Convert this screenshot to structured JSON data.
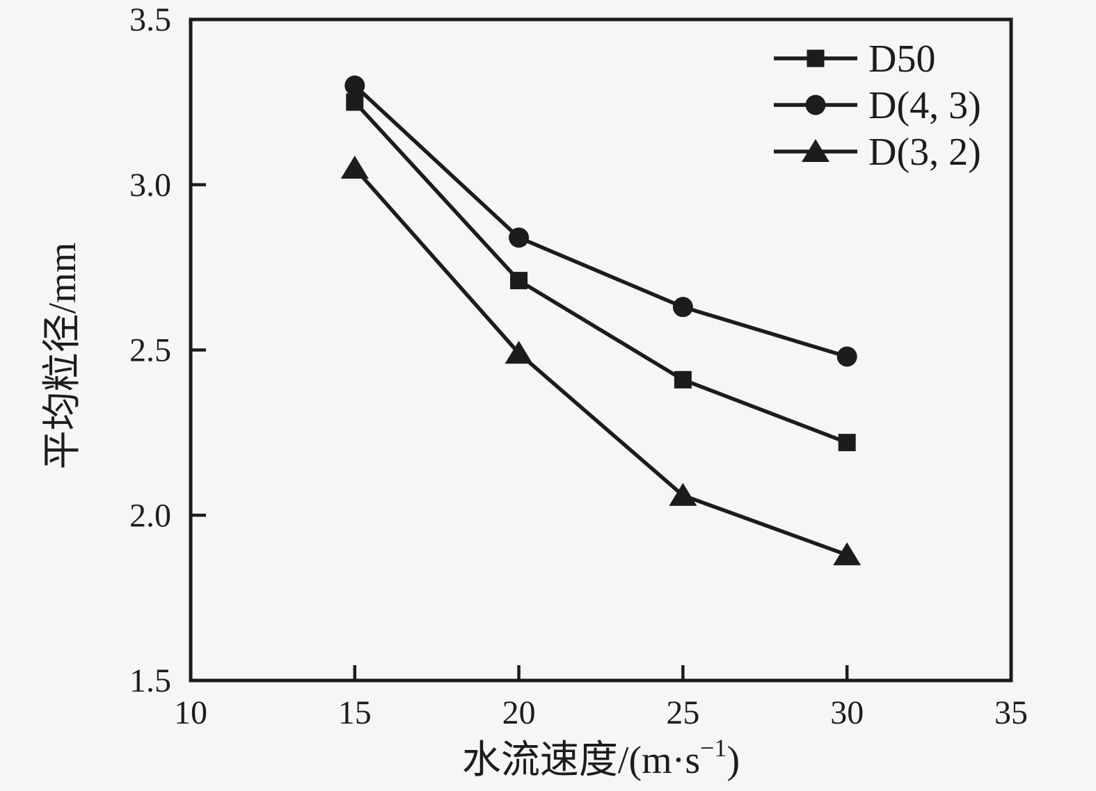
{
  "page": {
    "background": "#f6f6f6",
    "ink": "#1c1c1c"
  },
  "chart_data": {
    "type": "line",
    "title": "",
    "xlabel": "水流速度/(m·s⁻¹)",
    "xlabel_parts": {
      "pre": "水流速度/(m·s",
      "sup": "−1",
      "post": ")"
    },
    "ylabel": "平均粒径/mm",
    "xlim": [
      10,
      35
    ],
    "ylim": [
      1.5,
      3.5
    ],
    "x_ticks": [
      10,
      15,
      20,
      25,
      30,
      35
    ],
    "x_tick_labels": [
      "10",
      "15",
      "20",
      "25",
      "30",
      "35"
    ],
    "y_ticks": [
      1.5,
      2.0,
      2.5,
      3.0,
      3.5
    ],
    "y_tick_labels": [
      "1.5",
      "2.0",
      "2.5",
      "3.0",
      "3.5"
    ],
    "grid": false,
    "legend_position": "top-right",
    "x": [
      15,
      20,
      25,
      30
    ],
    "series": [
      {
        "name": "D50",
        "marker": "square",
        "values": [
          3.25,
          2.71,
          2.41,
          2.22
        ]
      },
      {
        "name": "D(4, 3)",
        "marker": "circle",
        "values": [
          3.3,
          2.84,
          2.63,
          2.48
        ]
      },
      {
        "name": "D(3, 2)",
        "marker": "triangle",
        "values": [
          3.05,
          2.49,
          2.06,
          1.88
        ]
      }
    ],
    "line_color": "#1c1c1c"
  }
}
